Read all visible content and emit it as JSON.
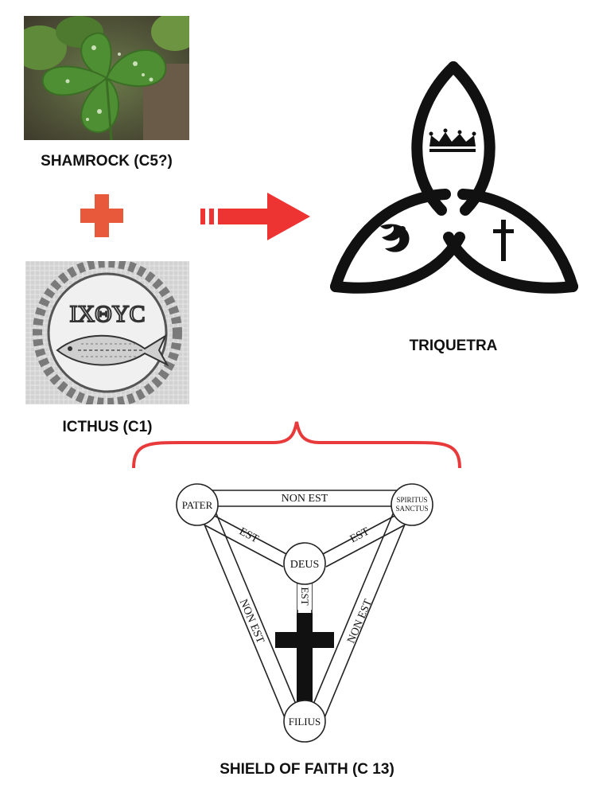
{
  "shamrock": {
    "caption": "SHAMROCK (C5?)"
  },
  "icthus": {
    "caption": "ICTHUS (C1)",
    "mosaic_text": "IXΘYC"
  },
  "triquetra": {
    "caption": "TRIQUETRA"
  },
  "shield": {
    "caption": "SHIELD OF FAITH (C 13)",
    "nodes": {
      "pater": "PATER",
      "spiritus_1": "SPIRITUS",
      "spiritus_2": "SANCTUS",
      "deus": "DEUS",
      "filius": "FILIUS"
    },
    "edges": {
      "top": "NON EST",
      "left": "NON EST",
      "right": "NON EST",
      "pater_deus": "EST",
      "spiritus_deus": "EST",
      "deus_filius": "EST"
    }
  },
  "colors": {
    "plus": "#e8593b",
    "arrow": "#ee3333",
    "brace": "#e83a3a"
  }
}
